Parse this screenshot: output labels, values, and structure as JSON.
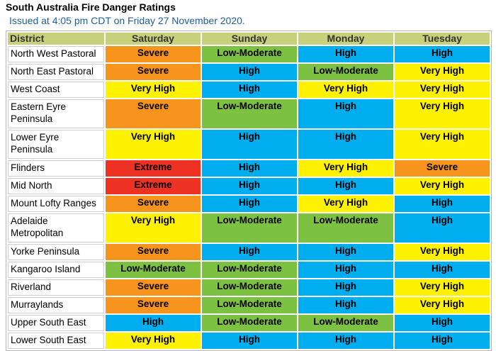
{
  "header": {
    "title": "South Australia Fire Danger Ratings",
    "issued": "Issued at 4:05 pm CDT on Friday 27 November 2020."
  },
  "table": {
    "columns": [
      "District",
      "Saturday",
      "Sunday",
      "Monday",
      "Tuesday"
    ],
    "rows": [
      {
        "district": "North West Pastoral",
        "ratings": [
          "Severe",
          "Low-Moderate",
          "High",
          "High"
        ]
      },
      {
        "district": "North East Pastoral",
        "ratings": [
          "Severe",
          "High",
          "Low-Moderate",
          "Very High"
        ]
      },
      {
        "district": "West Coast",
        "ratings": [
          "Very High",
          "High",
          "Very High",
          "Very High"
        ]
      },
      {
        "district": "Eastern Eyre Peninsula",
        "ratings": [
          "Severe",
          "Low-Moderate",
          "High",
          "Very High"
        ]
      },
      {
        "district": "Lower Eyre Peninsula",
        "ratings": [
          "Very High",
          "High",
          "High",
          "Very High"
        ]
      },
      {
        "district": "Flinders",
        "ratings": [
          "Extreme",
          "High",
          "Very High",
          "Severe"
        ]
      },
      {
        "district": "Mid North",
        "ratings": [
          "Extreme",
          "High",
          "High",
          "Very High"
        ]
      },
      {
        "district": "Mount Lofty Ranges",
        "ratings": [
          "Severe",
          "High",
          "Very High",
          "High"
        ]
      },
      {
        "district": "Adelaide Metropolitan",
        "ratings": [
          "Very High",
          "Low-Moderate",
          "Low-Moderate",
          "High"
        ]
      },
      {
        "district": "Yorke Peninsula",
        "ratings": [
          "Severe",
          "High",
          "High",
          "Very High"
        ]
      },
      {
        "district": "Kangaroo Island",
        "ratings": [
          "Low-Moderate",
          "Low-Moderate",
          "High",
          "High"
        ]
      },
      {
        "district": "Riverland",
        "ratings": [
          "Severe",
          "Low-Moderate",
          "High",
          "Very High"
        ]
      },
      {
        "district": "Murraylands",
        "ratings": [
          "Severe",
          "Low-Moderate",
          "High",
          "Very High"
        ]
      },
      {
        "district": "Upper South East",
        "ratings": [
          "High",
          "Low-Moderate",
          "Low-Moderate",
          "High"
        ]
      },
      {
        "district": "Lower South East",
        "ratings": [
          "Very High",
          "High",
          "High",
          "High"
        ]
      }
    ]
  },
  "rating_colors": {
    "Severe": "#f7941d",
    "Low-Moderate": "#7dc142",
    "High": "#00aeef",
    "Very High": "#fff200",
    "Extreme": "#ed3224"
  }
}
